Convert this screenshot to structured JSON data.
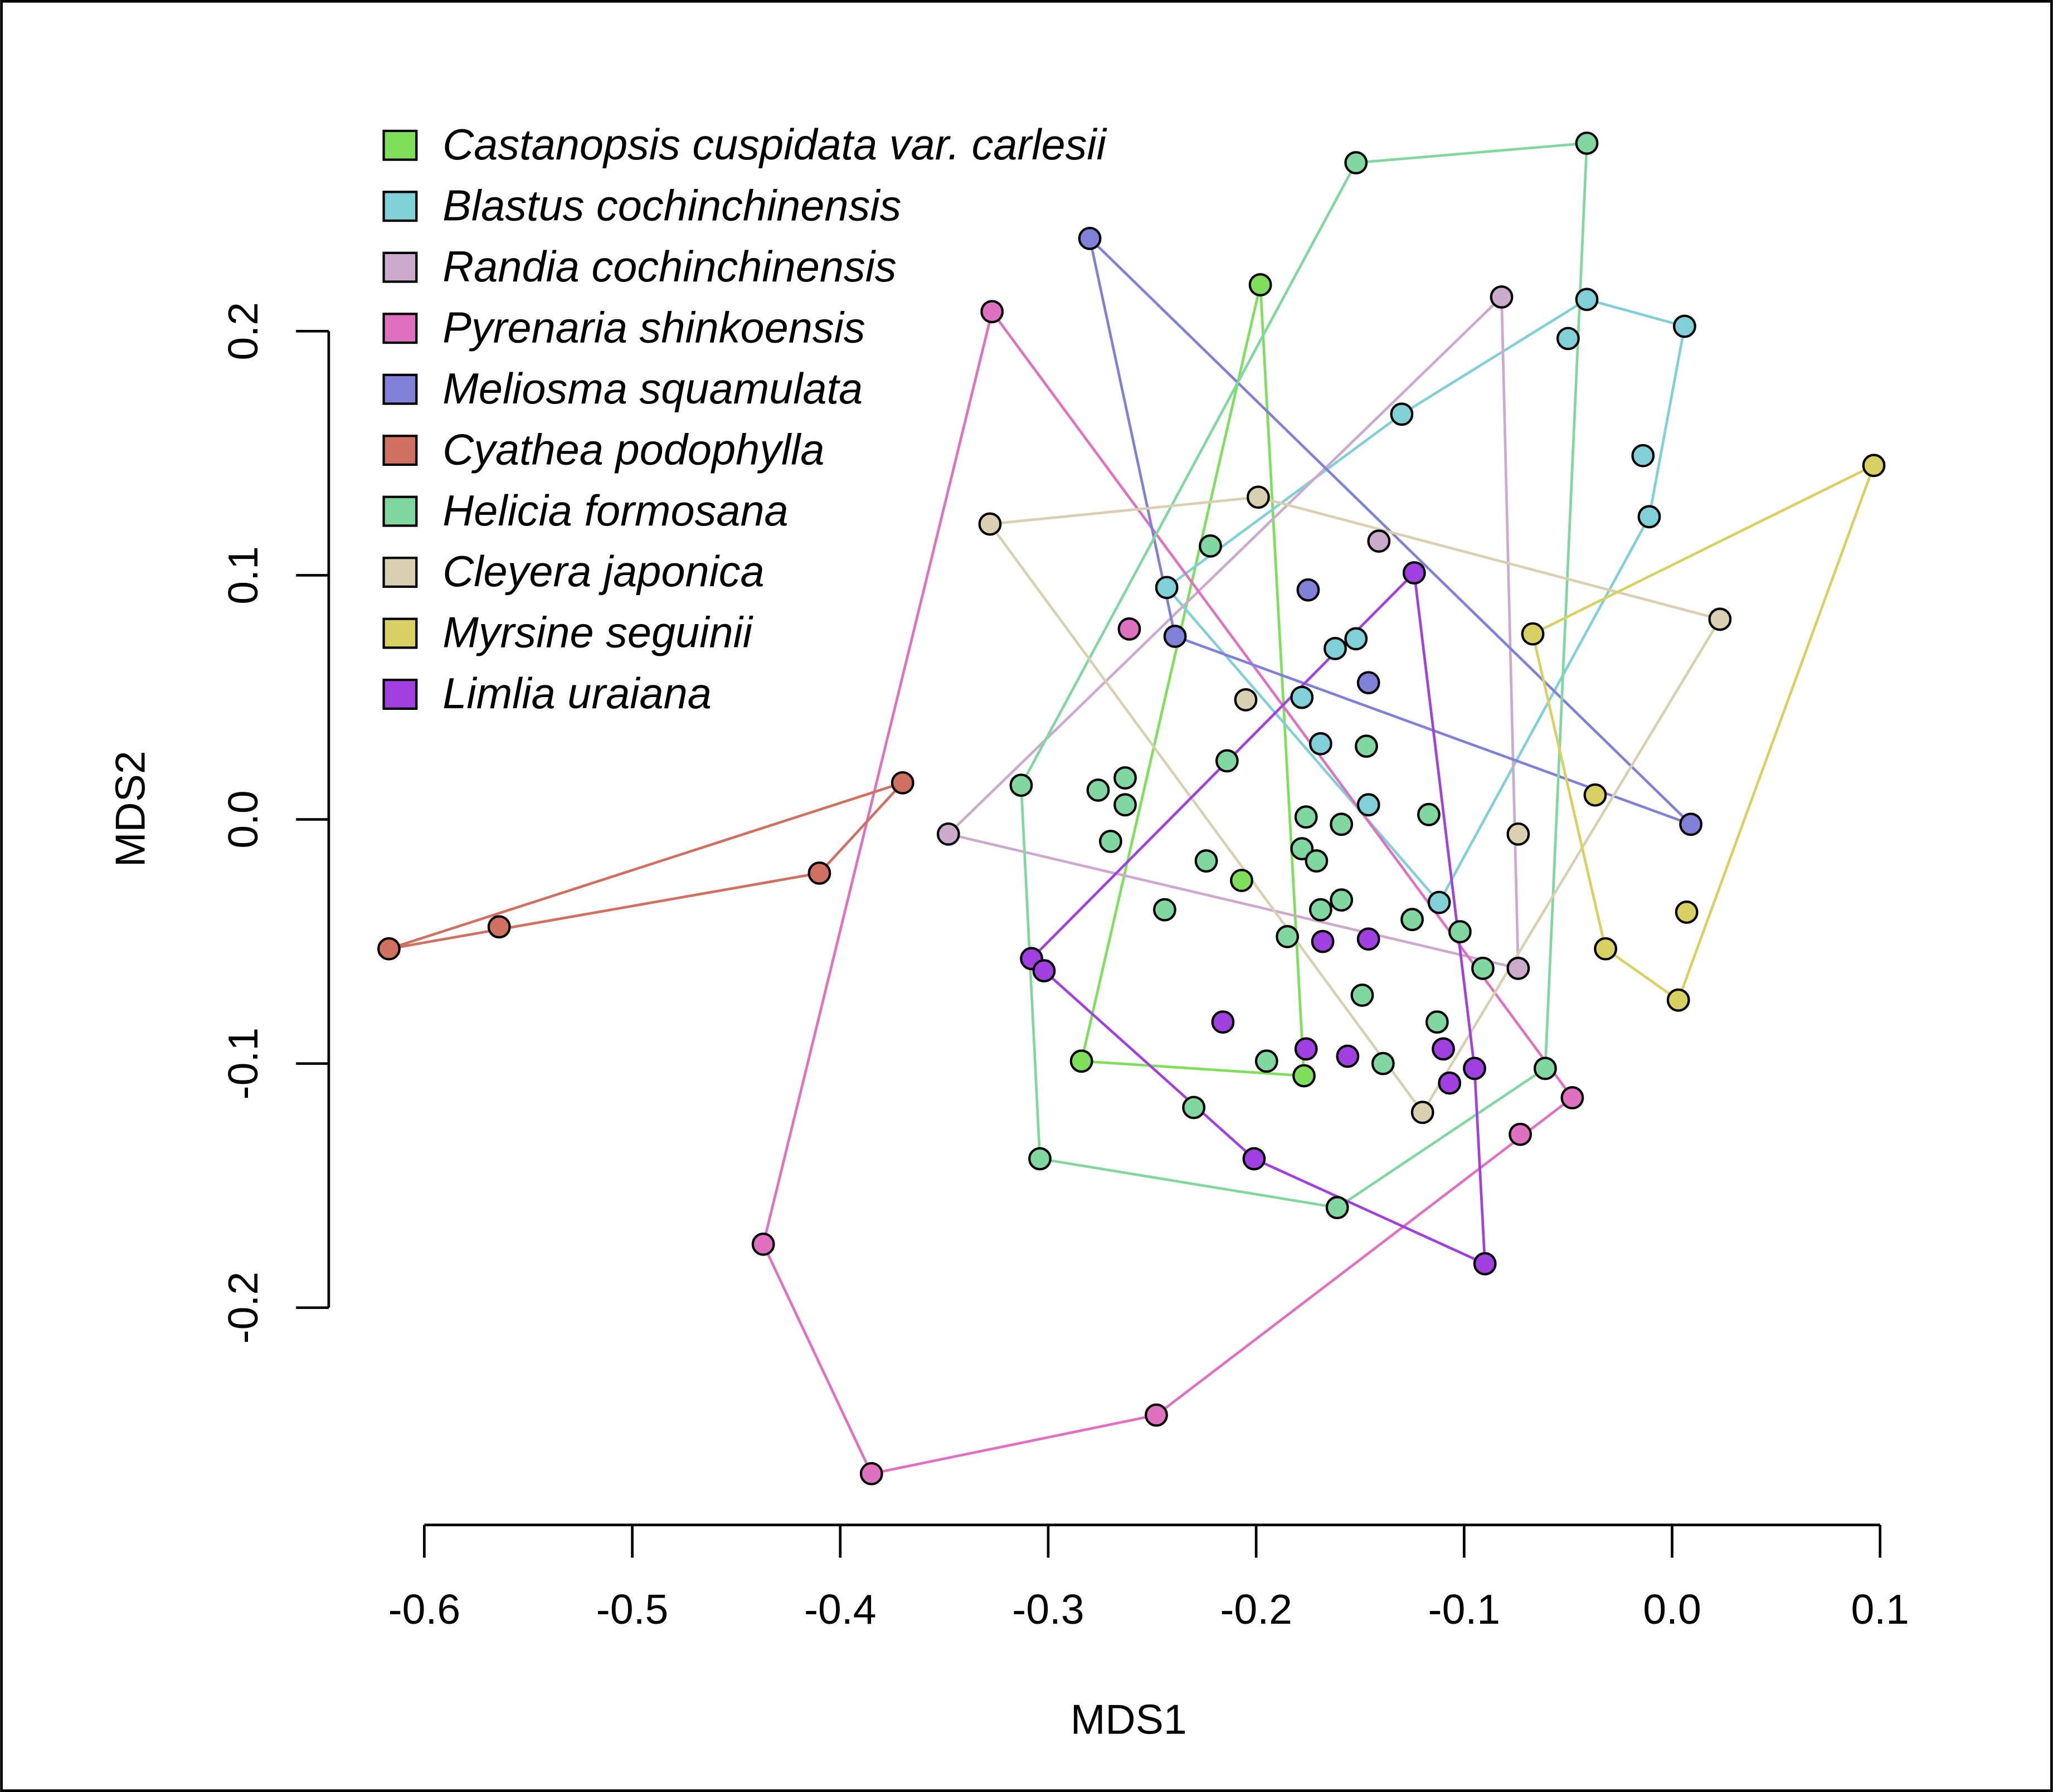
{
  "chart_data": {
    "type": "scatter",
    "x_label": "MDS1",
    "y_label": "MDS2",
    "xlim": [
      -0.62,
      0.1
    ],
    "ylim": [
      -0.27,
      0.28
    ],
    "xticks": [
      -0.6,
      -0.5,
      -0.4,
      -0.3,
      -0.2,
      -0.1,
      {
        "value": 0,
        "label": "0.0"
      },
      0.1
    ],
    "yticks": [
      -0.2,
      -0.1,
      {
        "value": 0,
        "label": "0.0"
      },
      0.1,
      0.2
    ],
    "legend": "top-left",
    "hulls": true,
    "series": [
      {
        "name": "Castanopsis cuspidata var. carlesii",
        "color": "#7ee05a",
        "x": [
          -0.198,
          -0.284,
          -0.177,
          -0.207
        ],
        "y": [
          0.219,
          -0.099,
          -0.105,
          -0.025
        ]
      },
      {
        "name": "Blastus cochinchinensis",
        "color": "#80d0d8",
        "x": [
          -0.041,
          0.006,
          -0.05,
          -0.13,
          -0.014,
          -0.011,
          -0.243,
          -0.162,
          -0.152,
          -0.178,
          -0.169,
          -0.112,
          -0.146
        ],
        "y": [
          0.213,
          0.202,
          0.197,
          0.166,
          0.149,
          0.124,
          0.095,
          0.07,
          0.074,
          0.05,
          0.031,
          -0.034,
          0.006
        ]
      },
      {
        "name": "Randia cochinchinensis",
        "color": "#ccaacc",
        "x": [
          -0.348,
          -0.082,
          -0.074,
          -0.141
        ],
        "y": [
          -0.006,
          0.214,
          -0.061,
          0.114
        ]
      },
      {
        "name": "Pyrenaria shinkoensis",
        "color": "#e070c0",
        "x": [
          -0.327,
          -0.437,
          -0.385,
          -0.248,
          -0.073,
          -0.048,
          -0.261
        ],
        "y": [
          0.208,
          -0.174,
          -0.268,
          -0.244,
          -0.129,
          -0.114,
          0.078
        ]
      },
      {
        "name": "Meliosma squamulata",
        "color": "#8080d8",
        "x": [
          -0.28,
          0.009,
          -0.239,
          -0.175,
          -0.146
        ],
        "y": [
          0.238,
          -0.002,
          0.075,
          0.094,
          0.056
        ]
      },
      {
        "name": "Cyathea podophylla",
        "color": "#d07060",
        "x": [
          -0.617,
          -0.564,
          -0.41,
          -0.37
        ],
        "y": [
          -0.053,
          -0.044,
          -0.022,
          0.015
        ]
      },
      {
        "name": "Helicia formosana",
        "color": "#80d8a0",
        "x": [
          -0.152,
          -0.041,
          -0.061,
          -0.161,
          -0.304,
          -0.313,
          -0.222,
          -0.214,
          -0.263,
          -0.276,
          -0.263,
          -0.27,
          -0.224,
          -0.244,
          -0.176,
          -0.159,
          -0.178,
          -0.171,
          -0.147,
          -0.117,
          -0.159,
          -0.169,
          -0.185,
          -0.125,
          -0.102,
          -0.149,
          -0.091,
          -0.113,
          -0.195,
          -0.139,
          -0.23
        ],
        "y": [
          0.269,
          0.277,
          -0.102,
          -0.159,
          -0.139,
          0.014,
          0.112,
          0.024,
          0.017,
          0.012,
          0.006,
          -0.009,
          -0.017,
          -0.037,
          0.001,
          -0.002,
          -0.012,
          -0.017,
          0.03,
          0.002,
          -0.033,
          -0.037,
          -0.048,
          -0.041,
          -0.046,
          -0.072,
          -0.061,
          -0.083,
          -0.099,
          -0.1,
          -0.118
        ]
      },
      {
        "name": "Cleyera japonica",
        "color": "#d8d0b0",
        "x": [
          -0.328,
          -0.199,
          0.023,
          -0.12,
          -0.074,
          -0.205
        ],
        "y": [
          0.121,
          0.132,
          0.082,
          -0.12,
          -0.006,
          0.049
        ]
      },
      {
        "name": "Myrsine seguinii",
        "color": "#d8d060",
        "x": [
          0.097,
          -0.067,
          -0.032,
          0.003,
          -0.037,
          0.007
        ],
        "y": [
          0.145,
          0.076,
          -0.053,
          -0.074,
          0.01,
          -0.038
        ]
      },
      {
        "name": "Limlia uraiana",
        "color": "#a040e0",
        "x": [
          -0.124,
          -0.308,
          -0.302,
          -0.201,
          -0.09,
          -0.095,
          -0.168,
          -0.146,
          -0.216,
          -0.176,
          -0.156,
          -0.11,
          -0.107
        ],
        "y": [
          0.101,
          -0.057,
          -0.062,
          -0.139,
          -0.182,
          -0.102,
          -0.05,
          -0.049,
          -0.083,
          -0.094,
          -0.097,
          -0.094,
          -0.108
        ]
      }
    ]
  }
}
